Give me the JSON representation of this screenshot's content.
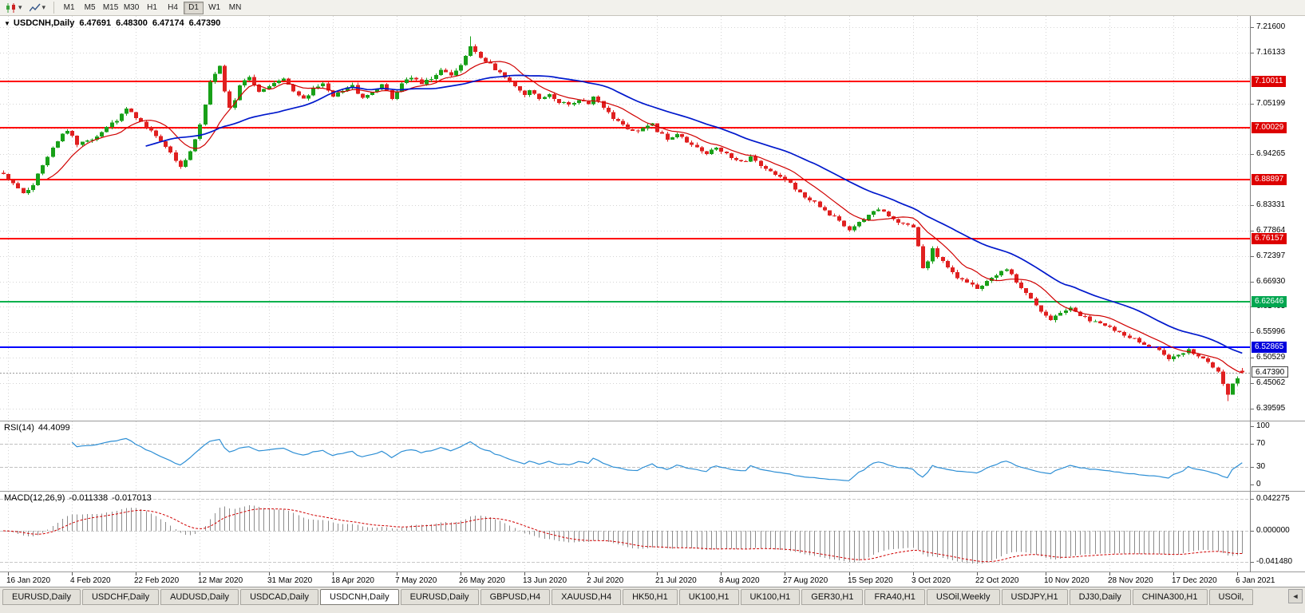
{
  "toolbar": {
    "dropdown_icon": "▾",
    "timeframes": [
      {
        "label": "M1",
        "active": false
      },
      {
        "label": "M5",
        "active": false
      },
      {
        "label": "M15",
        "active": false
      },
      {
        "label": "M30",
        "active": false
      },
      {
        "label": "H1",
        "active": false
      },
      {
        "label": "H4",
        "active": false
      },
      {
        "label": "D1",
        "active": true
      },
      {
        "label": "W1",
        "active": false
      },
      {
        "label": "MN",
        "active": false
      }
    ]
  },
  "chart": {
    "menu_icon": "▼",
    "title": "USDCNH,Daily",
    "ohlc": {
      "open": "6.47691",
      "high": "6.48300",
      "low": "6.47174",
      "close": "6.47390"
    }
  },
  "price_axis": {
    "ticks": [
      "7.21600",
      "7.16133",
      "7.05199",
      "6.94265",
      "6.83331",
      "6.77864",
      "6.72397",
      "6.66930",
      "6.61463",
      "6.55996",
      "6.50529",
      "6.45062",
      "6.39595"
    ],
    "grid_ticks": [
      7.216,
      7.16133,
      7.10666,
      7.05199,
      6.99732,
      6.94265,
      6.88798,
      6.83331,
      6.77864,
      6.72397,
      6.6693,
      6.61463,
      6.55996,
      6.50529,
      6.45062,
      6.39595
    ],
    "badges": [
      {
        "value": "7.10011",
        "bg": "#dd0000"
      },
      {
        "value": "7.00029",
        "bg": "#dd0000"
      },
      {
        "value": "6.88897",
        "bg": "#dd0000"
      },
      {
        "value": "6.76157",
        "bg": "#dd0000"
      },
      {
        "value": "6.62646",
        "bg": "#00a650"
      },
      {
        "value": "6.52865",
        "bg": "#0000dd"
      }
    ],
    "current_badge": {
      "value": "6.47390"
    }
  },
  "hlines": [
    {
      "price": 7.10011,
      "color": "#ff0000",
      "width": 2
    },
    {
      "price": 7.00029,
      "color": "#ff0000",
      "width": 2
    },
    {
      "price": 6.88897,
      "color": "#ff0000",
      "width": 2
    },
    {
      "price": 6.76157,
      "color": "#ff0000",
      "width": 2
    },
    {
      "price": 6.62646,
      "color": "#00b14c",
      "width": 2
    },
    {
      "price": 6.52865,
      "color": "#0000ff",
      "width": 2
    }
  ],
  "indicators": {
    "rsi": {
      "name": "RSI(14)",
      "value": "44.4099",
      "ticks": [
        "100",
        "70",
        "30",
        "0"
      ],
      "levels": [
        70,
        30
      ]
    },
    "macd": {
      "name": "MACD(12,26,9)",
      "main_value": "-0.011338",
      "signal_value": "-0.017013",
      "ticks": [
        "0.042275",
        "0.000000",
        "-0.041480"
      ]
    }
  },
  "date_axis": {
    "labels": [
      "16 Jan 2020",
      "4 Feb 2020",
      "22 Feb 2020",
      "12 Mar 2020",
      "31 Mar 2020",
      "18 Apr 2020",
      "7 May 2020",
      "26 May 2020",
      "13 Jun 2020",
      "2 Jul 2020",
      "21 Jul 2020",
      "8 Aug 2020",
      "27 Aug 2020",
      "15 Sep 2020",
      "3 Oct 2020",
      "22 Oct 2020",
      "10 Nov 2020",
      "28 Nov 2020",
      "17 Dec 2020",
      "6 Jan 2021"
    ]
  },
  "tabs": [
    {
      "label": "EURUSD,Daily",
      "active": false
    },
    {
      "label": "USDCHF,Daily",
      "active": false
    },
    {
      "label": "AUDUSD,Daily",
      "active": false
    },
    {
      "label": "USDCAD,Daily",
      "active": false
    },
    {
      "label": "USDCNH,Daily",
      "active": true
    },
    {
      "label": "EURUSD,Daily",
      "active": false
    },
    {
      "label": "GBPUSD,H4",
      "active": false
    },
    {
      "label": "XAUUSD,H4",
      "active": false
    },
    {
      "label": "HK50,H1",
      "active": false
    },
    {
      "label": "UK100,H1",
      "active": false
    },
    {
      "label": "UK100,H1",
      "active": false
    },
    {
      "label": "GER30,H1",
      "active": false
    },
    {
      "label": "FRA40,H1",
      "active": false
    },
    {
      "label": "USOil,Weekly",
      "active": false
    },
    {
      "label": "USDJPY,H1",
      "active": false
    },
    {
      "label": "DJ30,Daily",
      "active": false
    },
    {
      "label": "CHINA300,H1",
      "active": false
    },
    {
      "label": "USOil,",
      "active": false
    }
  ],
  "tab_scroll_icon": "◄",
  "chart_data": {
    "type": "candlestick",
    "symbol": "USDCNH",
    "period": "Daily",
    "num_candles": 253,
    "price_range": [
      6.3701,
      7.24
    ],
    "current_price": 6.4739,
    "last_candle": {
      "open": 6.47691,
      "high": 6.483,
      "low": 6.47174,
      "close": 6.4739
    },
    "extreme_high": [
      95,
      7.1964
    ],
    "extreme_low": [
      249,
      6.4119
    ],
    "close_path": [
      [
        0,
        6.9
      ],
      [
        2,
        6.88
      ],
      [
        4,
        6.856
      ],
      [
        6,
        6.878
      ],
      [
        8,
        6.92
      ],
      [
        10,
        6.956
      ],
      [
        12,
        6.988
      ],
      [
        13,
        6.995
      ],
      [
        15,
        6.964
      ],
      [
        17,
        6.972
      ],
      [
        19,
        6.983
      ],
      [
        21,
        7.0
      ],
      [
        23,
        7.018
      ],
      [
        25,
        7.04
      ],
      [
        27,
        7.022
      ],
      [
        29,
        7.0
      ],
      [
        31,
        6.982
      ],
      [
        33,
        6.962
      ],
      [
        35,
        6.93
      ],
      [
        36,
        6.916
      ],
      [
        38,
        6.948
      ],
      [
        40,
        7.005
      ],
      [
        41,
        7.052
      ],
      [
        42,
        7.095
      ],
      [
        43,
        7.118
      ],
      [
        44,
        7.132
      ],
      [
        45,
        7.078
      ],
      [
        46,
        7.04
      ],
      [
        47,
        7.062
      ],
      [
        48,
        7.092
      ],
      [
        50,
        7.112
      ],
      [
        52,
        7.078
      ],
      [
        54,
        7.09
      ],
      [
        55,
        7.098
      ],
      [
        57,
        7.108
      ],
      [
        59,
        7.078
      ],
      [
        61,
        7.06
      ],
      [
        63,
        7.082
      ],
      [
        65,
        7.094
      ],
      [
        67,
        7.068
      ],
      [
        69,
        7.08
      ],
      [
        71,
        7.09
      ],
      [
        73,
        7.062
      ],
      [
        75,
        7.076
      ],
      [
        77,
        7.09
      ],
      [
        79,
        7.064
      ],
      [
        81,
        7.094
      ],
      [
        83,
        7.11
      ],
      [
        85,
        7.092
      ],
      [
        87,
        7.106
      ],
      [
        89,
        7.126
      ],
      [
        91,
        7.11
      ],
      [
        93,
        7.134
      ],
      [
        95,
        7.172
      ],
      [
        96,
        7.16
      ],
      [
        98,
        7.144
      ],
      [
        100,
        7.126
      ],
      [
        102,
        7.108
      ],
      [
        104,
        7.09
      ],
      [
        106,
        7.072
      ],
      [
        107,
        7.08
      ],
      [
        109,
        7.06
      ],
      [
        111,
        7.072
      ],
      [
        113,
        7.056
      ],
      [
        115,
        7.048
      ],
      [
        117,
        7.062
      ],
      [
        119,
        7.052
      ],
      [
        120,
        7.066
      ],
      [
        122,
        7.044
      ],
      [
        124,
        7.022
      ],
      [
        126,
        7.004
      ],
      [
        128,
        6.99
      ],
      [
        130,
        7.0
      ],
      [
        132,
        7.012
      ],
      [
        133,
        6.992
      ],
      [
        135,
        6.976
      ],
      [
        137,
        6.988
      ],
      [
        139,
        6.97
      ],
      [
        141,
        6.958
      ],
      [
        143,
        6.946
      ],
      [
        145,
        6.96
      ],
      [
        146,
        6.95
      ],
      [
        148,
        6.936
      ],
      [
        150,
        6.924
      ],
      [
        152,
        6.936
      ],
      [
        154,
        6.916
      ],
      [
        156,
        6.904
      ],
      [
        158,
        6.896
      ],
      [
        159,
        6.889
      ],
      [
        161,
        6.87
      ],
      [
        163,
        6.852
      ],
      [
        165,
        6.838
      ],
      [
        167,
        6.822
      ],
      [
        169,
        6.806
      ],
      [
        171,
        6.788
      ],
      [
        172,
        6.778
      ],
      [
        174,
        6.794
      ],
      [
        176,
        6.81
      ],
      [
        178,
        6.826
      ],
      [
        180,
        6.812
      ],
      [
        182,
        6.796
      ],
      [
        184,
        6.79
      ],
      [
        185,
        6.788
      ],
      [
        186,
        6.748
      ],
      [
        187,
        6.695
      ],
      [
        188,
        6.715
      ],
      [
        189,
        6.74
      ],
      [
        190,
        6.722
      ],
      [
        192,
        6.698
      ],
      [
        194,
        6.68
      ],
      [
        196,
        6.666
      ],
      [
        198,
        6.655
      ],
      [
        200,
        6.67
      ],
      [
        202,
        6.684
      ],
      [
        204,
        6.694
      ],
      [
        206,
        6.67
      ],
      [
        208,
        6.645
      ],
      [
        210,
        6.62
      ],
      [
        211,
        6.605
      ],
      [
        213,
        6.588
      ],
      [
        215,
        6.602
      ],
      [
        217,
        6.614
      ],
      [
        219,
        6.598
      ],
      [
        221,
        6.586
      ],
      [
        223,
        6.578
      ],
      [
        224,
        6.576
      ],
      [
        226,
        6.566
      ],
      [
        228,
        6.556
      ],
      [
        230,
        6.545
      ],
      [
        232,
        6.536
      ],
      [
        234,
        6.526
      ],
      [
        236,
        6.514
      ],
      [
        237,
        6.505
      ],
      [
        239,
        6.514
      ],
      [
        241,
        6.522
      ],
      [
        243,
        6.508
      ],
      [
        245,
        6.496
      ],
      [
        247,
        6.475
      ],
      [
        248,
        6.448
      ],
      [
        249,
        6.425
      ],
      [
        250,
        6.448
      ],
      [
        251,
        6.462
      ],
      [
        252,
        6.4739
      ]
    ],
    "noise": 0.0035,
    "wick": 0.005,
    "ma_fast_period": 10,
    "ma_slow_period": 30,
    "rsi_period": 14,
    "macd_periods": [
      12,
      26,
      9
    ],
    "macd_range": [
      0.0465,
      -0.0465
    ],
    "colors": {
      "up": "#18a018",
      "down": "#e02020",
      "ma_fast": "#d00000",
      "ma_slow": "#0018cc",
      "rsi": "#2e8fd5",
      "rsi_level": "#c0c0c0",
      "macd_hist": "#8c8c8c",
      "macd_signal": "#d00000",
      "macd_level": "#c8c8c8",
      "grid": "#d4d4d4",
      "current_line": "#999999"
    }
  }
}
